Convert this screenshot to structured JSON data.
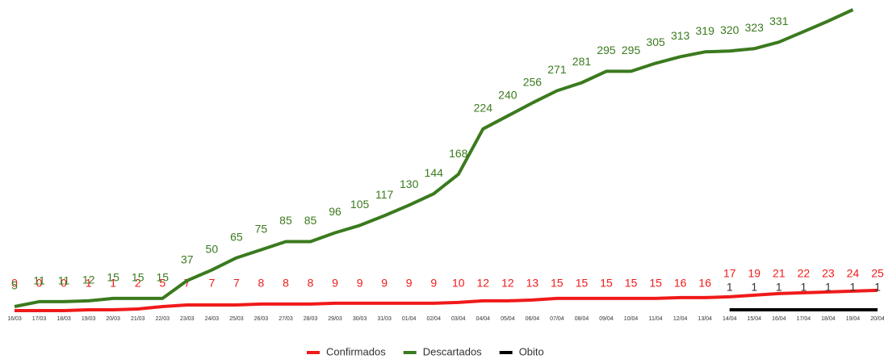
{
  "chart_data": {
    "type": "line",
    "categories": [
      "16/03",
      "17/03",
      "18/03",
      "19/03",
      "20/03",
      "21/03",
      "22/03",
      "23/03",
      "24/03",
      "25/03",
      "26/03",
      "27/03",
      "28/03",
      "29/03",
      "30/03",
      "31/03",
      "01/04",
      "02/04",
      "03/04",
      "04/04",
      "05/04",
      "06/04",
      "07/04",
      "08/04",
      "09/04",
      "10/04",
      "11/04",
      "12/04",
      "13/04",
      "14/04",
      "15/04",
      "16/04",
      "17/04",
      "18/04",
      "19/04",
      "20/04"
    ],
    "series": [
      {
        "name": "Confirmados",
        "color": "#f01a1a",
        "values": [
          0,
          0,
          0,
          1,
          1,
          2,
          5,
          7,
          7,
          7,
          8,
          8,
          8,
          9,
          9,
          9,
          9,
          9,
          10,
          12,
          12,
          13,
          15,
          15,
          15,
          15,
          15,
          16,
          16,
          17,
          19,
          21,
          22,
          23,
          24,
          25
        ]
      },
      {
        "name": "Descartados",
        "color": "#3b7a1e",
        "values": [
          5,
          11,
          11,
          12,
          15,
          15,
          15,
          37,
          50,
          65,
          75,
          85,
          85,
          96,
          105,
          117,
          130,
          144,
          168,
          224,
          240,
          256,
          271,
          281,
          295,
          295,
          305,
          313,
          319,
          320,
          323,
          331,
          344,
          357,
          371,
          null
        ]
      },
      {
        "name": "Obito",
        "color": "#000000",
        "values": [
          null,
          null,
          null,
          null,
          null,
          null,
          null,
          null,
          null,
          null,
          null,
          null,
          null,
          null,
          null,
          null,
          null,
          null,
          null,
          null,
          null,
          null,
          null,
          null,
          null,
          null,
          null,
          null,
          null,
          1,
          1,
          1,
          1,
          1,
          1,
          1
        ]
      }
    ],
    "ylim": [
      -2,
      373
    ]
  }
}
